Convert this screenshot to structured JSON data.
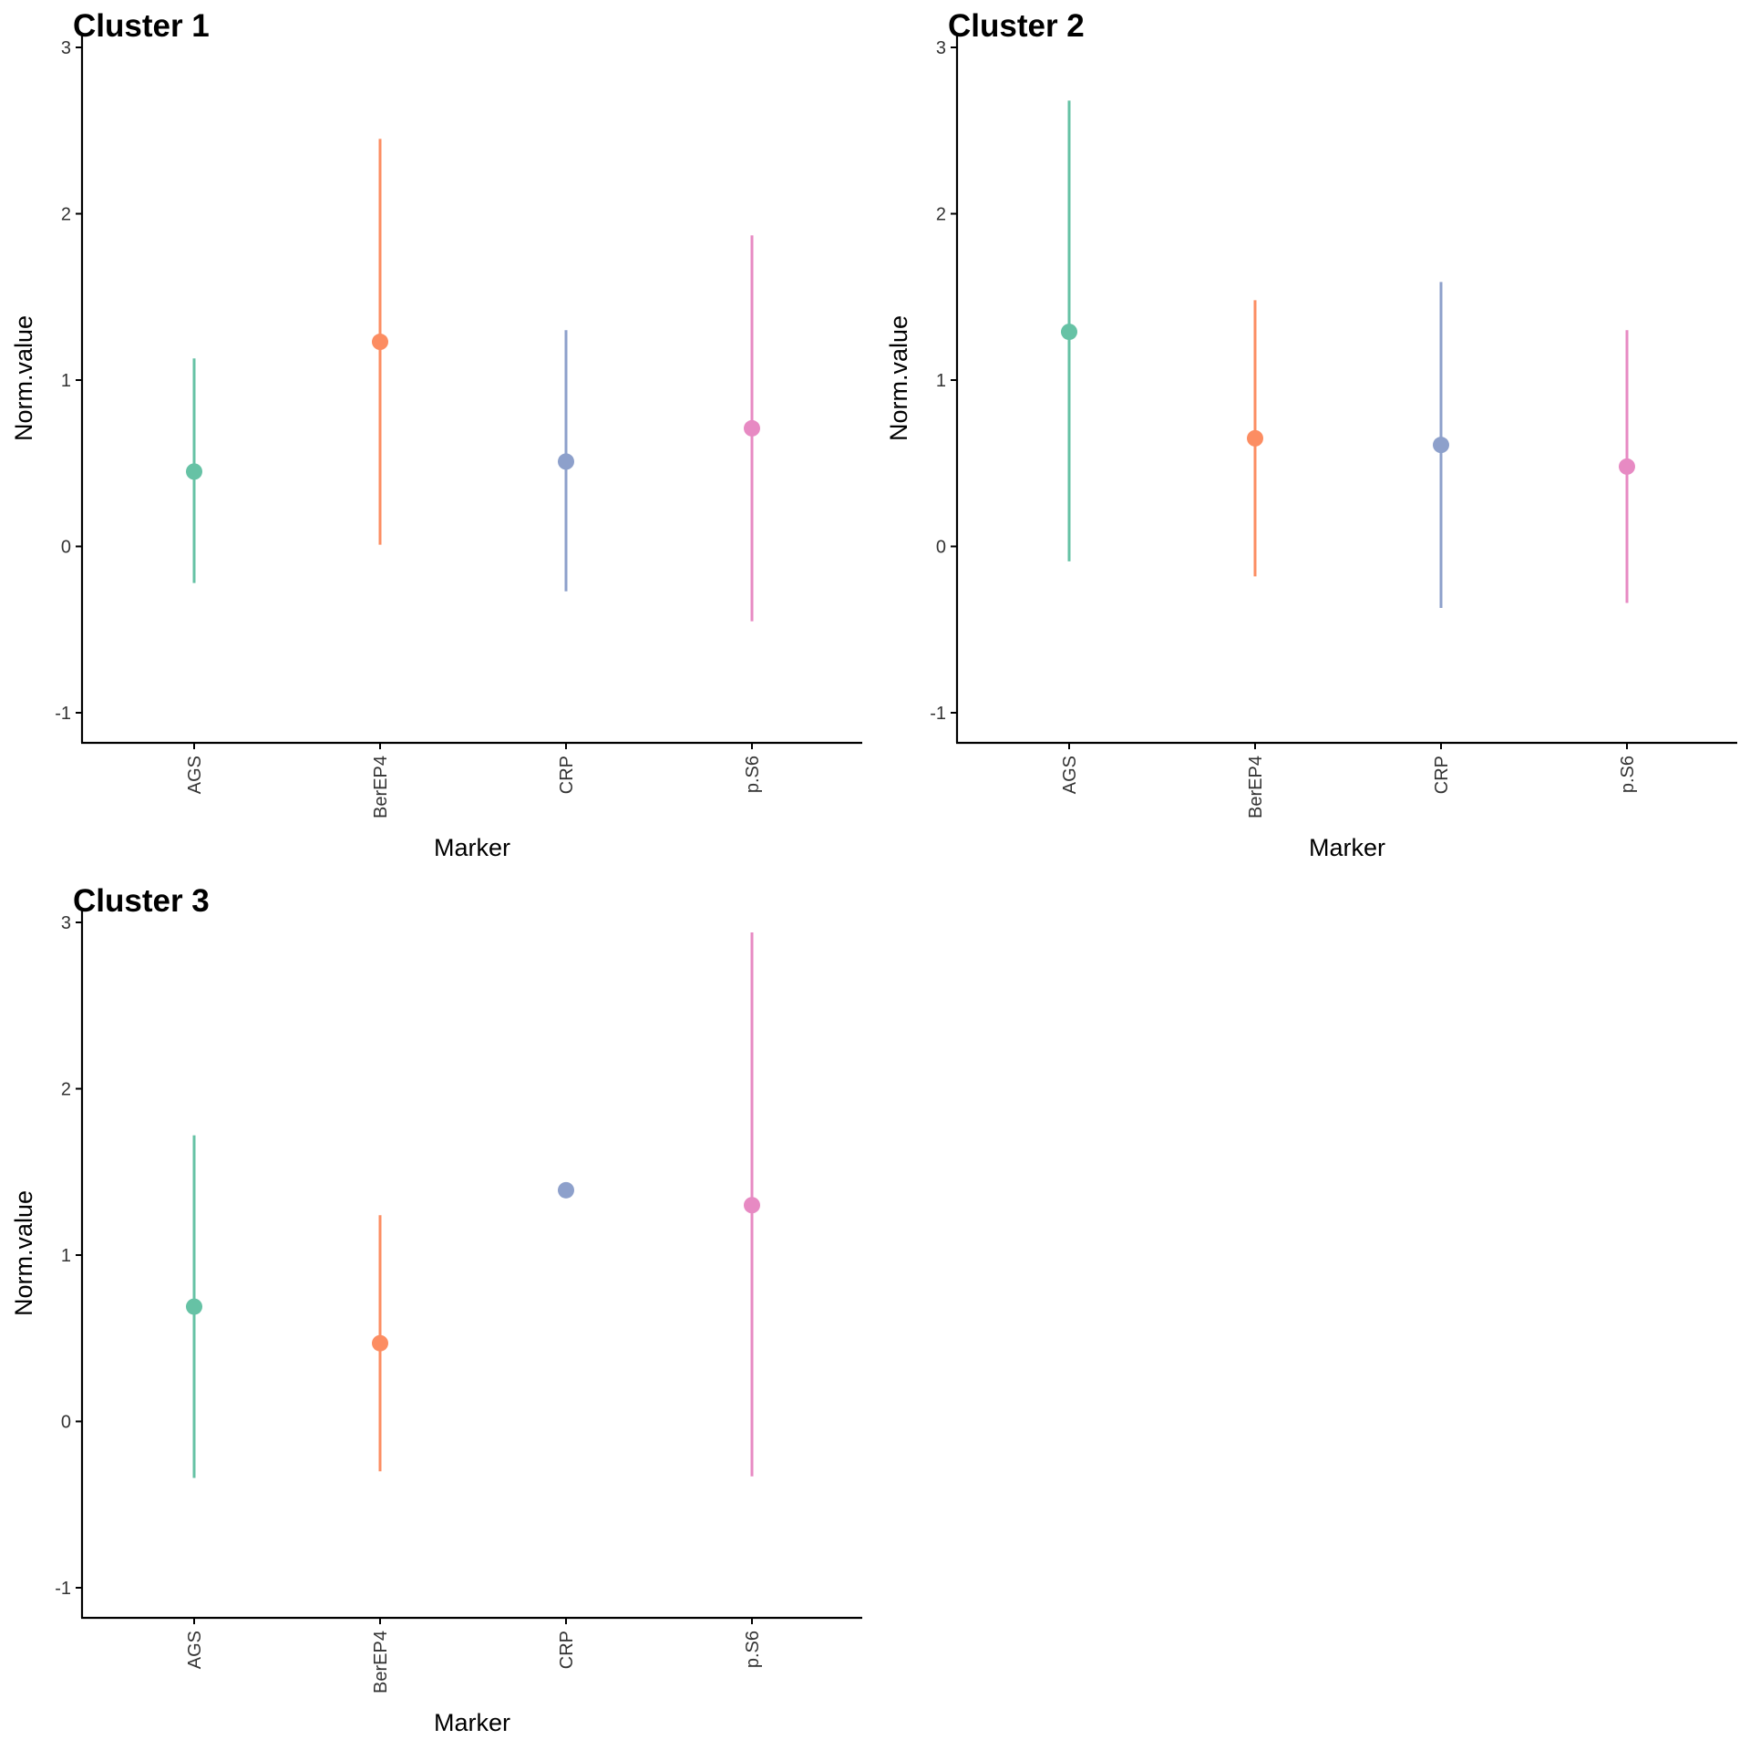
{
  "chart_data": [
    {
      "type": "pointrange",
      "title": "Cluster 1",
      "xlabel": "Marker",
      "ylabel": "Norm.value",
      "categories": [
        "AGS",
        "BerEP4",
        "CRP",
        "p.S6"
      ],
      "y_ticks": [
        "-1",
        "0",
        "1",
        "2",
        "3"
      ],
      "ylim": [
        -1.2,
        3
      ],
      "points": [
        {
          "marker": "AGS",
          "value": 0.45,
          "low": -0.22,
          "high": 1.13,
          "color": "#66C2A5"
        },
        {
          "marker": "BerEP4",
          "value": 1.23,
          "low": 0.01,
          "high": 2.45,
          "color": "#FC8D62"
        },
        {
          "marker": "CRP",
          "value": 0.51,
          "low": -0.27,
          "high": 1.3,
          "color": "#8DA0CB"
        },
        {
          "marker": "p.S6",
          "value": 0.71,
          "low": -0.45,
          "high": 1.87,
          "color": "#E78AC3"
        }
      ]
    },
    {
      "type": "pointrange",
      "title": "Cluster 2",
      "xlabel": "Marker",
      "ylabel": "Norm.value",
      "categories": [
        "AGS",
        "BerEP4",
        "CRP",
        "p.S6"
      ],
      "y_ticks": [
        "-1",
        "0",
        "1",
        "2",
        "3"
      ],
      "ylim": [
        -1.2,
        3
      ],
      "points": [
        {
          "marker": "AGS",
          "value": 1.29,
          "low": -0.09,
          "high": 2.68,
          "color": "#66C2A5"
        },
        {
          "marker": "BerEP4",
          "value": 0.65,
          "low": -0.18,
          "high": 1.48,
          "color": "#FC8D62"
        },
        {
          "marker": "CRP",
          "value": 0.61,
          "low": -0.37,
          "high": 1.59,
          "color": "#8DA0CB"
        },
        {
          "marker": "p.S6",
          "value": 0.48,
          "low": -0.34,
          "high": 1.3,
          "color": "#E78AC3"
        }
      ]
    },
    {
      "type": "pointrange",
      "title": "Cluster 3",
      "xlabel": "Marker",
      "ylabel": "Norm.value",
      "categories": [
        "AGS",
        "BerEP4",
        "CRP",
        "p.S6"
      ],
      "y_ticks": [
        "-1",
        "0",
        "1",
        "2",
        "3"
      ],
      "ylim": [
        -1.2,
        3
      ],
      "points": [
        {
          "marker": "AGS",
          "value": 0.69,
          "low": -0.34,
          "high": 1.72,
          "color": "#66C2A5"
        },
        {
          "marker": "BerEP4",
          "value": 0.47,
          "low": -0.3,
          "high": 1.24,
          "color": "#FC8D62"
        },
        {
          "marker": "CRP",
          "value": 1.39,
          "low": null,
          "high": null,
          "color": "#8DA0CB"
        },
        {
          "marker": "p.S6",
          "value": 1.3,
          "low": -0.33,
          "high": 2.94,
          "color": "#E78AC3"
        }
      ]
    }
  ]
}
